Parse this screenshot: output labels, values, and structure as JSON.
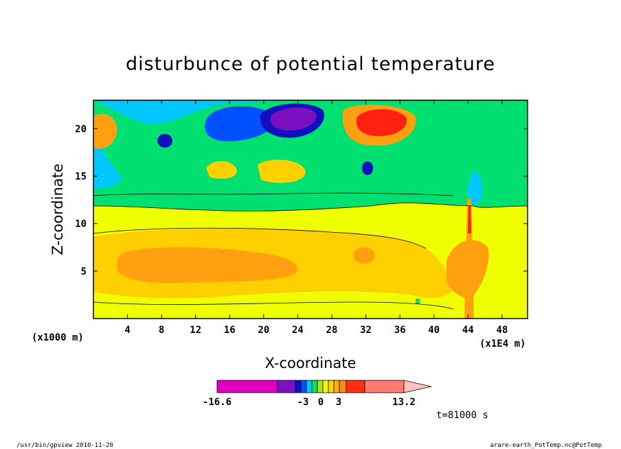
{
  "chart_data": {
    "type": "heatmap",
    "title": "disturbunce of potential temperature",
    "xlabel": "X-coordinate",
    "ylabel": "Z-coordinate",
    "x_unit_left": "(x1000 m)",
    "x_unit_right": "(x1E4 m)",
    "xlim": [
      0,
      51
    ],
    "ylim": [
      0,
      23
    ],
    "x_ticks": [
      4,
      8,
      12,
      16,
      20,
      24,
      28,
      32,
      36,
      40,
      44,
      48
    ],
    "x_tick_labels": [
      "4",
      "8",
      "12",
      "16",
      "20",
      "24",
      "28",
      "32",
      "36",
      "40",
      "44",
      "48"
    ],
    "y_ticks": [
      5,
      10,
      15,
      20
    ],
    "y_tick_labels": [
      "5",
      "10",
      "15",
      "20"
    ],
    "colorbar": {
      "min_label": "-16.6",
      "max_label": "13.2",
      "mid_labels": [
        "-3",
        "0",
        "3"
      ],
      "colors": [
        "#e000c0",
        "#7a10c0",
        "#1010c0",
        "#0050ff",
        "#00c8ff",
        "#00e070",
        "#a8e820",
        "#f0ff00",
        "#ffd700",
        "#ffb000",
        "#ff8c10",
        "#ff3010",
        "#ff7a70",
        "#ffc0c0"
      ]
    },
    "regions": {
      "magenta": "#e000c0",
      "purple": "#7a10c0",
      "navy": "#1010c0",
      "blue": "#0050ff",
      "cyan": "#00c8ff",
      "green": "#00e070",
      "yellow": "#f0ff00",
      "lightorange": "#ffd000",
      "orange": "#ffa010",
      "darkorange": "#ff8c10",
      "red": "#ff2010"
    },
    "time_label": "t=81000 s"
  },
  "footer": {
    "left": "/usr/bin/gpview  2010-11-20",
    "right": "arare-earth_PotTemp.nc@PotTemp"
  }
}
